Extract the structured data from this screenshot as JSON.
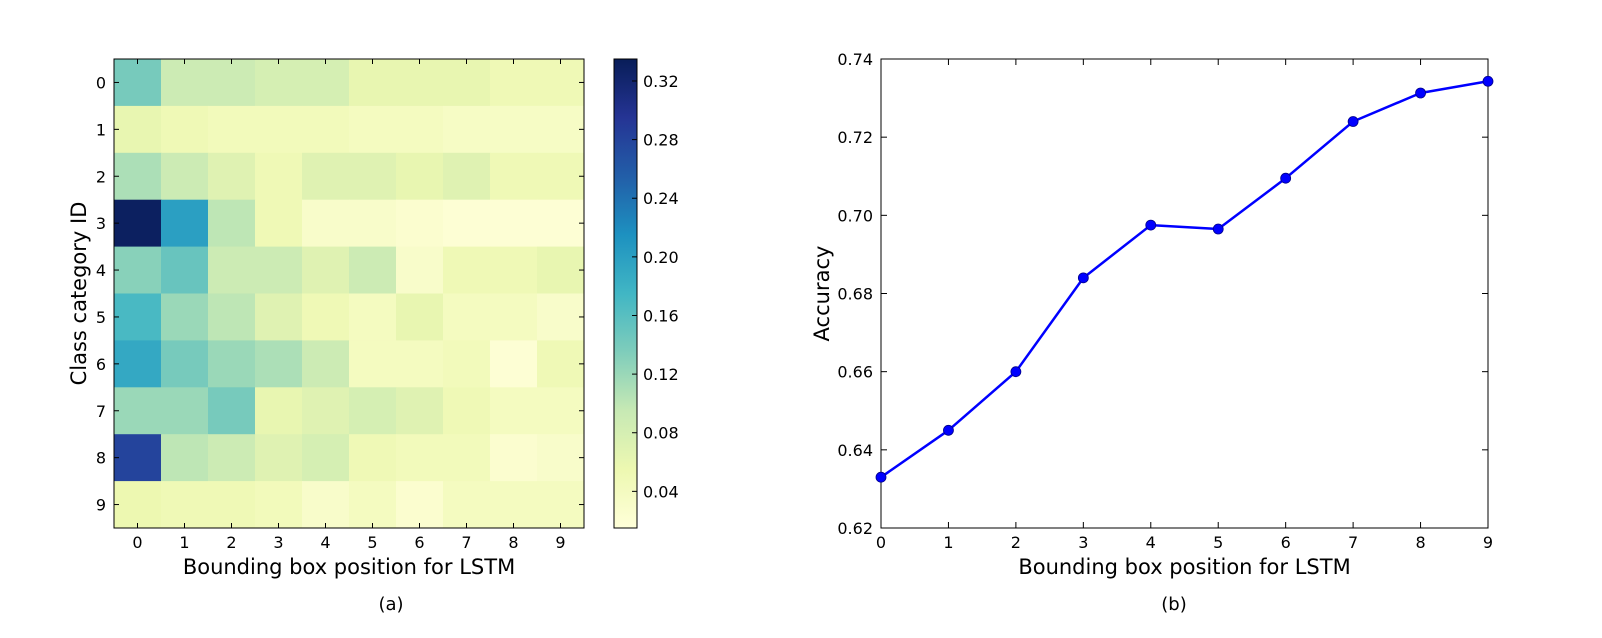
{
  "chart_data": [
    {
      "type": "heatmap",
      "caption": "(a)",
      "xlabel": "Bounding box position for LSTM",
      "ylabel": "Class category ID",
      "x_categories": [
        "0",
        "1",
        "2",
        "3",
        "4",
        "5",
        "6",
        "7",
        "8",
        "9"
      ],
      "y_categories": [
        "0",
        "1",
        "2",
        "3",
        "4",
        "5",
        "6",
        "7",
        "8",
        "9"
      ],
      "values": [
        [
          0.14,
          0.09,
          0.09,
          0.08,
          0.08,
          0.06,
          0.06,
          0.06,
          0.05,
          0.05
        ],
        [
          0.06,
          0.05,
          0.045,
          0.045,
          0.045,
          0.04,
          0.04,
          0.035,
          0.035,
          0.035
        ],
        [
          0.11,
          0.09,
          0.07,
          0.05,
          0.07,
          0.07,
          0.06,
          0.07,
          0.05,
          0.05
        ],
        [
          0.33,
          0.2,
          0.1,
          0.05,
          0.03,
          0.03,
          0.025,
          0.02,
          0.02,
          0.02
        ],
        [
          0.13,
          0.15,
          0.09,
          0.09,
          0.07,
          0.09,
          0.03,
          0.05,
          0.05,
          0.06
        ],
        [
          0.17,
          0.12,
          0.1,
          0.07,
          0.05,
          0.04,
          0.06,
          0.04,
          0.04,
          0.03
        ],
        [
          0.19,
          0.14,
          0.12,
          0.11,
          0.09,
          0.04,
          0.04,
          0.045,
          0.02,
          0.05
        ],
        [
          0.12,
          0.12,
          0.14,
          0.06,
          0.07,
          0.08,
          0.07,
          0.05,
          0.04,
          0.04
        ],
        [
          0.28,
          0.1,
          0.09,
          0.07,
          0.08,
          0.05,
          0.045,
          0.045,
          0.025,
          0.03
        ],
        [
          0.055,
          0.05,
          0.05,
          0.045,
          0.03,
          0.04,
          0.025,
          0.04,
          0.04,
          0.04
        ]
      ],
      "colorbar": {
        "min": 0.015,
        "max": 0.335,
        "ticks": [
          0.04,
          0.08,
          0.12,
          0.16,
          0.2,
          0.24,
          0.28,
          0.32
        ],
        "tick_labels": [
          "0.04",
          "0.08",
          "0.12",
          "0.16",
          "0.20",
          "0.24",
          "0.28",
          "0.32"
        ],
        "colormap": "YlGnBu",
        "colormap_stops": [
          "#ffffd9",
          "#edf8b1",
          "#c7e9b4",
          "#7fcdbb",
          "#41b6c4",
          "#1d91c0",
          "#225ea8",
          "#253494",
          "#081d58"
        ]
      }
    },
    {
      "type": "line",
      "caption": "(b)",
      "xlabel": "Bounding box position for LSTM",
      "ylabel": "Accuracy",
      "x": [
        0,
        1,
        2,
        3,
        4,
        5,
        6,
        7,
        8,
        9
      ],
      "series": [
        {
          "color": "#0000ff",
          "marker": "circle",
          "values": [
            0.633,
            0.645,
            0.66,
            0.684,
            0.6975,
            0.6965,
            0.7095,
            0.724,
            0.7313,
            0.7343
          ]
        }
      ],
      "xlim": [
        0,
        9
      ],
      "ylim": [
        0.62,
        0.74
      ],
      "xticks": [
        0,
        1,
        2,
        3,
        4,
        5,
        6,
        7,
        8,
        9
      ],
      "xtick_labels": [
        "0",
        "1",
        "2",
        "3",
        "4",
        "5",
        "6",
        "7",
        "8",
        "9"
      ],
      "yticks": [
        0.62,
        0.64,
        0.66,
        0.68,
        0.7,
        0.72,
        0.74
      ],
      "ytick_labels": [
        "0.62",
        "0.64",
        "0.66",
        "0.68",
        "0.70",
        "0.72",
        "0.74"
      ],
      "grid": false
    }
  ]
}
